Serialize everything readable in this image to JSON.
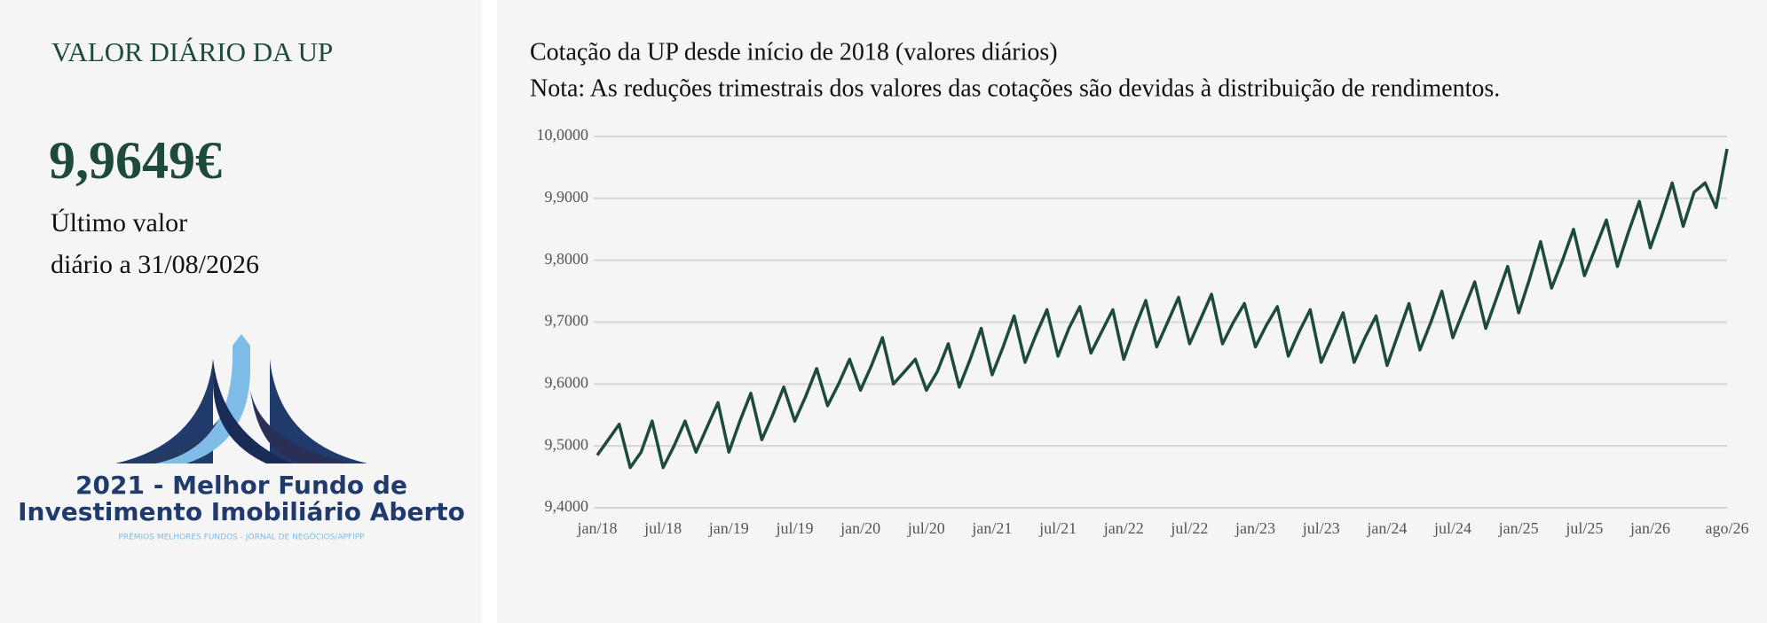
{
  "left_panel": {
    "title": "VALOR DIÁRIO DA UP",
    "value": "9,9649€",
    "label_lines": [
      "Último valor",
      "diário a 31/08/2026"
    ]
  },
  "award": {
    "line1": "2021 - Melhor Fundo de",
    "line2": "Investimento Imobiliário Aberto",
    "source": "PRÉMIOS MELHORES FUNDOS - JORNAL DE NEGÓCIOS/APFIPP"
  },
  "chart_data": {
    "type": "line",
    "title": "Cotação da UP desde início de 2018 (valores diários)",
    "subtitle": "Nota: As reduções trimestrais dos valores das cotações são devidas à distribuição de rendimentos.",
    "categories": [
      "jan/18",
      null,
      null,
      null,
      null,
      null,
      "jul/18",
      null,
      null,
      null,
      null,
      null,
      "jan/19",
      null,
      null,
      null,
      null,
      null,
      "jul/19",
      null,
      null,
      null,
      null,
      null,
      "jan/20",
      null,
      null,
      null,
      null,
      null,
      "jul/20",
      null,
      null,
      null,
      null,
      null,
      "jan/21",
      null,
      null,
      null,
      null,
      null,
      "jul/21",
      null,
      null,
      null,
      null,
      null,
      "jan/22",
      null,
      null,
      null,
      null,
      null,
      "jul/22",
      null,
      null,
      null,
      null,
      null,
      "jan/23",
      null,
      null,
      null,
      null,
      null,
      "jul/23",
      null,
      null,
      null,
      null,
      null,
      "jan/24",
      null,
      null,
      null,
      null,
      null,
      "jul/24",
      null,
      null,
      null,
      null,
      null,
      "jan/25",
      null,
      null,
      null,
      null,
      null,
      "jul/25",
      null,
      null,
      null,
      null,
      null,
      "jan/26",
      null,
      null,
      null,
      null,
      null,
      null,
      "ago/26"
    ],
    "values": [
      9.485,
      9.51,
      9.535,
      9.465,
      9.49,
      9.54,
      9.465,
      9.5,
      9.54,
      9.49,
      9.53,
      9.57,
      9.49,
      9.54,
      9.585,
      9.51,
      9.55,
      9.595,
      9.54,
      9.58,
      9.625,
      9.565,
      9.6,
      9.64,
      9.59,
      9.63,
      9.675,
      9.6,
      9.62,
      9.64,
      9.59,
      9.62,
      9.665,
      9.595,
      9.64,
      9.69,
      9.615,
      9.66,
      9.71,
      9.635,
      9.68,
      9.72,
      9.645,
      9.69,
      9.725,
      9.65,
      9.685,
      9.72,
      9.64,
      9.69,
      9.735,
      9.66,
      9.7,
      9.74,
      9.665,
      9.705,
      9.745,
      9.665,
      9.7,
      9.73,
      9.66,
      9.695,
      9.725,
      9.645,
      9.685,
      9.72,
      9.635,
      9.675,
      9.715,
      9.635,
      9.675,
      9.71,
      9.63,
      9.68,
      9.73,
      9.655,
      9.7,
      9.75,
      9.675,
      9.72,
      9.765,
      9.69,
      9.74,
      9.79,
      9.715,
      9.77,
      9.83,
      9.755,
      9.8,
      9.85,
      9.775,
      9.82,
      9.865,
      9.79,
      9.845,
      9.895,
      9.82,
      9.87,
      9.925,
      9.855,
      9.91,
      9.925,
      9.885,
      9.98
    ],
    "color": "#1d4a3a",
    "ylim": [
      9.4,
      10.0
    ],
    "yticks": [
      {
        "value": 9.4,
        "label": "9,4000"
      },
      {
        "value": 9.5,
        "label": "9,5000"
      },
      {
        "value": 9.6,
        "label": "9,6000"
      },
      {
        "value": 9.7,
        "label": "9,7000"
      },
      {
        "value": 9.8,
        "label": "9,8000"
      },
      {
        "value": 9.9,
        "label": "9,9000"
      },
      {
        "value": 10.0,
        "label": "10,0000"
      }
    ],
    "grid": true
  }
}
